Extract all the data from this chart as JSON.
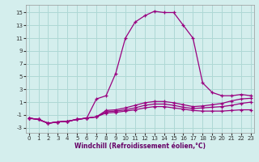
{
  "xlabel": "Windchill (Refroidissement éolien,°C)",
  "background_color": "#d4eeed",
  "grid_color": "#aed8d5",
  "line_color": "#990080",
  "x_ticks": [
    0,
    1,
    2,
    3,
    4,
    5,
    6,
    7,
    8,
    9,
    10,
    11,
    12,
    13,
    14,
    15,
    16,
    17,
    18,
    19,
    20,
    21,
    22,
    23
  ],
  "y_ticks": [
    -3,
    -1,
    1,
    3,
    5,
    7,
    9,
    11,
    13,
    15
  ],
  "xlim": [
    -0.3,
    23.3
  ],
  "ylim": [
    -3.8,
    16.2
  ],
  "series": [
    [
      -1.5,
      -1.7,
      -2.3,
      -2.1,
      -2.0,
      -1.7,
      -1.5,
      -1.3,
      -0.7,
      -0.6,
      -0.4,
      -0.2,
      0.1,
      0.3,
      0.3,
      0.1,
      -0.1,
      -0.3,
      -0.4,
      -0.4,
      -0.4,
      -0.3,
      -0.2,
      -0.2
    ],
    [
      -1.5,
      -1.7,
      -2.3,
      -2.1,
      -2.0,
      -1.7,
      -1.5,
      -1.3,
      -0.5,
      -0.4,
      -0.2,
      0.1,
      0.5,
      0.7,
      0.7,
      0.5,
      0.2,
      0.0,
      0.1,
      0.2,
      0.3,
      0.5,
      0.8,
      1.0
    ],
    [
      -1.5,
      -1.7,
      -2.3,
      -2.1,
      -2.0,
      -1.7,
      -1.5,
      -1.3,
      -0.3,
      -0.2,
      0.1,
      0.5,
      0.9,
      1.1,
      1.1,
      0.9,
      0.6,
      0.3,
      0.4,
      0.6,
      0.8,
      1.2,
      1.5,
      1.6
    ],
    [
      -1.5,
      -1.7,
      -2.3,
      -2.1,
      -2.0,
      -1.7,
      -1.5,
      1.5,
      2.0,
      5.5,
      11.0,
      13.5,
      14.5,
      15.2,
      15.0,
      15.0,
      13.0,
      11.0,
      4.0,
      2.5,
      2.0,
      2.0,
      2.2,
      2.0
    ]
  ]
}
